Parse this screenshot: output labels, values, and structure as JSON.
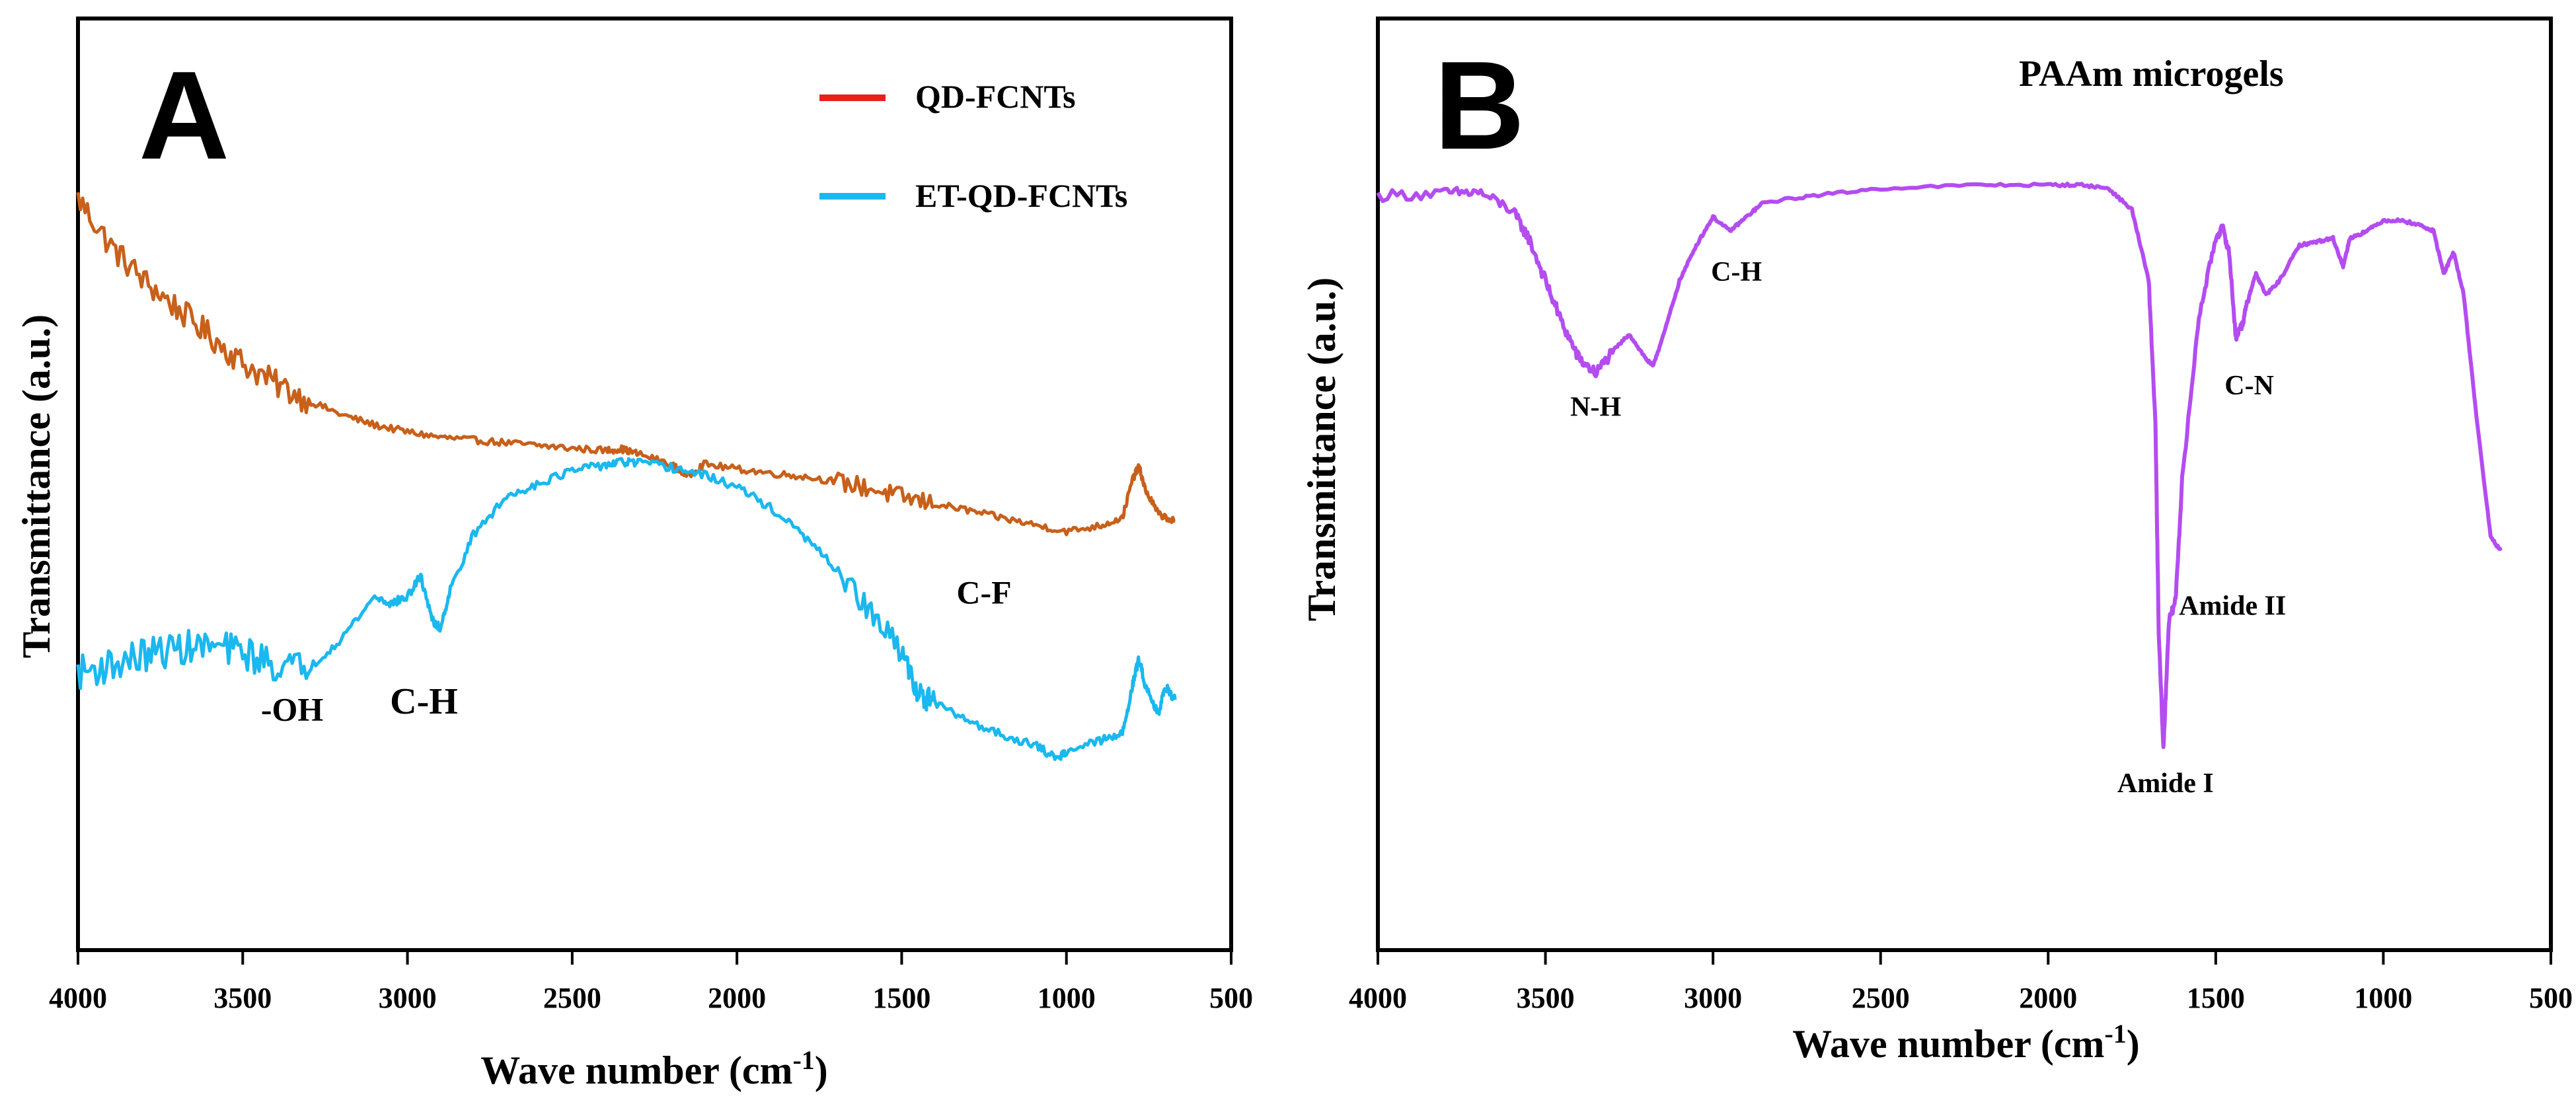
{
  "chart_data": [
    {
      "panel": "A",
      "type": "line",
      "title": "",
      "xlabel": "Wave number (cm-1)",
      "xlabel_base": "Wave number (cm",
      "xlabel_sup": "-1",
      "xlabel_close": ")",
      "ylabel": "Transmittance (a.u.)",
      "xlim": [
        4000,
        500
      ],
      "ylim": [
        0,
        100
      ],
      "x_ticks": [
        4000,
        3500,
        3000,
        2500,
        2000,
        1500,
        1000,
        500
      ],
      "legend": [
        {
          "label": "QD-FCNTs",
          "color": "#e8201a"
        },
        {
          "label": "ET-QD-FCNTs",
          "color": "#1ab8ee"
        }
      ],
      "series": [
        {
          "name": "QD-FCNTs",
          "color": "#c8601a",
          "noise": 4,
          "points": [
            [
              4000,
              100
            ],
            [
              3900,
              93
            ],
            [
              3800,
              88
            ],
            [
              3700,
              84
            ],
            [
              3600,
              80
            ],
            [
              3500,
              76
            ],
            [
              3400,
              73
            ],
            [
              3300,
              70.5
            ],
            [
              3200,
              68.5
            ],
            [
              3100,
              67
            ],
            [
              3000,
              66
            ],
            [
              2900,
              65.2
            ],
            [
              2800,
              64.8
            ],
            [
              2700,
              64.4
            ],
            [
              2600,
              64
            ],
            [
              2500,
              63.6
            ],
            [
              2400,
              63.3
            ],
            [
              2350,
              63.5
            ],
            [
              2300,
              62.8
            ],
            [
              2200,
              61.3
            ],
            [
              2150,
              59.5
            ],
            [
              2100,
              61.3
            ],
            [
              2000,
              60.6
            ],
            [
              1900,
              60
            ],
            [
              1800,
              59.5
            ],
            [
              1700,
              58.8
            ],
            [
              1600,
              57.8
            ],
            [
              1500,
              56.5
            ],
            [
              1400,
              55.5
            ],
            [
              1300,
              54.6
            ],
            [
              1200,
              53.5
            ],
            [
              1100,
              52.5
            ],
            [
              1000,
              51.5
            ],
            [
              900,
              52.3
            ],
            [
              830,
              53.5
            ],
            [
              800,
              59
            ],
            [
              780,
              61
            ],
            [
              760,
              57.5
            ],
            [
              720,
              54
            ],
            [
              670,
              53
            ]
          ]
        },
        {
          "name": "ET-QD-FCNTs",
          "color": "#1ab8ee",
          "noise": 5,
          "points": [
            [
              4000,
              31
            ],
            [
              3900,
              32
            ],
            [
              3800,
              33.5
            ],
            [
              3700,
              34.5
            ],
            [
              3600,
              34.8
            ],
            [
              3500,
              34
            ],
            [
              3400,
              32
            ],
            [
              3300,
              31.5
            ],
            [
              3200,
              36
            ],
            [
              3100,
              42
            ],
            [
              3050,
              41
            ],
            [
              3000,
              42
            ],
            [
              2960,
              45
            ],
            [
              2920,
              38
            ],
            [
              2900,
              37.5
            ],
            [
              2870,
              43
            ],
            [
              2800,
              51
            ],
            [
              2700,
              56.5
            ],
            [
              2600,
              58.6
            ],
            [
              2500,
              60.3
            ],
            [
              2400,
              61.2
            ],
            [
              2350,
              61.6
            ],
            [
              2300,
              61.5
            ],
            [
              2200,
              60.8
            ],
            [
              2100,
              59.7
            ],
            [
              2000,
              58
            ],
            [
              1900,
              55
            ],
            [
              1800,
              51
            ],
            [
              1700,
              46
            ],
            [
              1600,
              40
            ],
            [
              1500,
              34
            ],
            [
              1450,
              28
            ],
            [
              1400,
              26.5
            ],
            [
              1300,
              24
            ],
            [
              1200,
              22
            ],
            [
              1100,
              20.5
            ],
            [
              1030,
              18.5
            ],
            [
              1000,
              19.5
            ],
            [
              900,
              21
            ],
            [
              830,
              22
            ],
            [
              800,
              29
            ],
            [
              780,
              33
            ],
            [
              760,
              29
            ],
            [
              720,
              25
            ],
            [
              700,
              29
            ],
            [
              670,
              27
            ]
          ]
        }
      ],
      "annotations": [
        {
          "text": "-OH",
          "x": 3350,
          "y": 24
        },
        {
          "text": "C-H",
          "x": 2950,
          "y": 25
        },
        {
          "text": "C-F",
          "x": 1250,
          "y": 41
        }
      ]
    },
    {
      "panel": "B",
      "type": "line",
      "title": "PAAm microgels",
      "xlabel": "Wave number (cm-1)",
      "xlabel_base": "Wave number (cm",
      "xlabel_sup": "-1",
      "xlabel_close": ")",
      "ylabel": "Transmittance (a.u.)",
      "xlim": [
        4000,
        500
      ],
      "ylim": [
        0,
        100
      ],
      "x_ticks": [
        4000,
        3500,
        3000,
        2500,
        2000,
        1500,
        1000,
        500
      ],
      "series": [
        {
          "name": "PAAm microgels",
          "color": "#b44cf0",
          "noise": 1.6,
          "points": [
            [
              4000,
              92
            ],
            [
              3800,
              92.3
            ],
            [
              3700,
              92.5
            ],
            [
              3600,
              90
            ],
            [
              3550,
              86
            ],
            [
              3500,
              80
            ],
            [
              3450,
              74
            ],
            [
              3400,
              69
            ],
            [
              3350,
              67
            ],
            [
              3300,
              70
            ],
            [
              3250,
              72.5
            ],
            [
              3200,
              69
            ],
            [
              3180,
              68
            ],
            [
              3150,
              72
            ],
            [
              3100,
              80
            ],
            [
              3050,
              85
            ],
            [
              3000,
              89
            ],
            [
              2950,
              87
            ],
            [
              2900,
              89
            ],
            [
              2850,
              91
            ],
            [
              2700,
              92
            ],
            [
              2500,
              93
            ],
            [
              2200,
              93.5
            ],
            [
              2000,
              93.5
            ],
            [
              1900,
              93.5
            ],
            [
              1820,
              93
            ],
            [
              1750,
              90
            ],
            [
              1700,
              80
            ],
            [
              1680,
              60
            ],
            [
              1670,
              30
            ],
            [
              1656,
              14
            ],
            [
              1640,
              32
            ],
            [
              1620,
              35
            ],
            [
              1600,
              52
            ],
            [
              1550,
              75
            ],
            [
              1500,
              86
            ],
            [
              1480,
              87.5
            ],
            [
              1460,
              84
            ],
            [
              1440,
              72
            ],
            [
              1420,
              74
            ],
            [
              1400,
              78
            ],
            [
              1380,
              81
            ],
            [
              1350,
              78
            ],
            [
              1310,
              80
            ],
            [
              1250,
              85
            ],
            [
              1200,
              85.5
            ],
            [
              1150,
              86
            ],
            [
              1120,
              82
            ],
            [
              1100,
              86
            ],
            [
              1050,
              87
            ],
            [
              1000,
              88.5
            ],
            [
              950,
              88.5
            ],
            [
              900,
              88
            ],
            [
              850,
              87
            ],
            [
              820,
              81
            ],
            [
              790,
              84
            ],
            [
              760,
              78
            ],
            [
              720,
              60
            ],
            [
              680,
              44
            ],
            [
              650,
              42
            ]
          ]
        }
      ],
      "annotations": [
        {
          "text": "N-H",
          "x": 3350,
          "y": 61
        },
        {
          "text": "C-H",
          "x": 2930,
          "y": 80
        },
        {
          "text": "C-N",
          "x": 1400,
          "y": 64
        },
        {
          "text": "Amide II",
          "x": 1450,
          "y": 33
        },
        {
          "text": "Amide I",
          "x": 1650,
          "y": 8
        }
      ]
    }
  ]
}
